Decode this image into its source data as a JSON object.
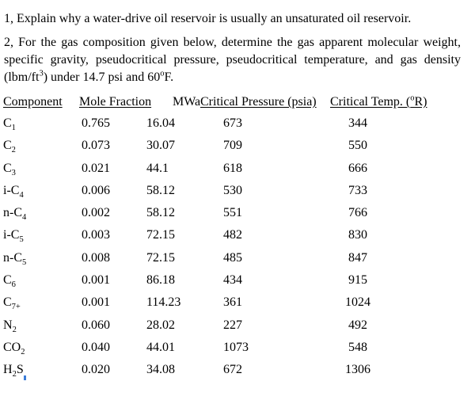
{
  "page": {
    "background": "#ffffff",
    "text_color": "#000000"
  },
  "questions": {
    "q1": "1, Explain why a water-drive oil reservoir is usually an unsaturated oil reservoir.",
    "q2": {
      "line1": "2, For the gas composition given below, determine the gas apparent molecular weight,",
      "line2": "specific gravity, pseudocritical pressure, pseudocritical temperature, and gas density",
      "line3": {
        "pre": "(lbm/ft",
        "sup1": "3",
        "mid": ") under 14.7 psi and 60",
        "sup2": "o",
        "end": "F."
      }
    }
  },
  "table": {
    "headers": {
      "component": "Component",
      "mole_fraction": "Mole Fraction",
      "mwa": "MWa",
      "critical_pressure": "Critical Pressure (psia)",
      "critical_temp": {
        "pre": "Critical Temp. (",
        "sup": "o",
        "post": "R)"
      }
    },
    "rows": [
      {
        "name_pre": "C",
        "name_sub": "1",
        "name_post": "",
        "mole_fraction": "0.765",
        "mwa": "16.04",
        "critical_pressure": "673",
        "critical_temp": "344"
      },
      {
        "name_pre": "C",
        "name_sub": "2",
        "name_post": "",
        "mole_fraction": "0.073",
        "mwa": "30.07",
        "critical_pressure": "709",
        "critical_temp": "550"
      },
      {
        "name_pre": "C",
        "name_sub": "3",
        "name_post": "",
        "mole_fraction": "0.021",
        "mwa": "44.1",
        "critical_pressure": "618",
        "critical_temp": "666"
      },
      {
        "name_pre": "i-C",
        "name_sub": "4",
        "name_post": "",
        "mole_fraction": "0.006",
        "mwa": "58.12",
        "critical_pressure": "530",
        "critical_temp": "733"
      },
      {
        "name_pre": "n-C",
        "name_sub": "4",
        "name_post": "",
        "mole_fraction": "0.002",
        "mwa": "58.12",
        "critical_pressure": "551",
        "critical_temp": "766"
      },
      {
        "name_pre": "i-C",
        "name_sub": "5",
        "name_post": "",
        "mole_fraction": "0.003",
        "mwa": "72.15",
        "critical_pressure": "482",
        "critical_temp": "830"
      },
      {
        "name_pre": "n-C",
        "name_sub": "5",
        "name_post": "",
        "mole_fraction": "0.008",
        "mwa": "72.15",
        "critical_pressure": "485",
        "critical_temp": "847"
      },
      {
        "name_pre": "C",
        "name_sub": "6",
        "name_post": "",
        "mole_fraction": "0.001",
        "mwa": "86.18",
        "critical_pressure": "434",
        "critical_temp": "915"
      },
      {
        "name_pre": "C",
        "name_sub": "7+",
        "name_post": "",
        "mole_fraction": "0.001",
        "mwa": "114.23",
        "critical_pressure": "361",
        "critical_temp": "1024"
      },
      {
        "name_pre": "N",
        "name_sub": "2",
        "name_post": "",
        "mole_fraction": "0.060",
        "mwa": "28.02",
        "critical_pressure": "227",
        "critical_temp": "492"
      },
      {
        "name_pre": "CO",
        "name_sub": "2",
        "name_post": "",
        "mole_fraction": "0.040",
        "mwa": "44.01",
        "critical_pressure": "1073",
        "critical_temp": "548"
      },
      {
        "name_pre": "H",
        "name_sub": "2",
        "name_post": "S",
        "mole_fraction": "0.020",
        "mwa": "34.08",
        "critical_pressure": "672",
        "critical_temp": "1306"
      }
    ]
  },
  "cursor": {
    "color": "#3c7dd9"
  }
}
